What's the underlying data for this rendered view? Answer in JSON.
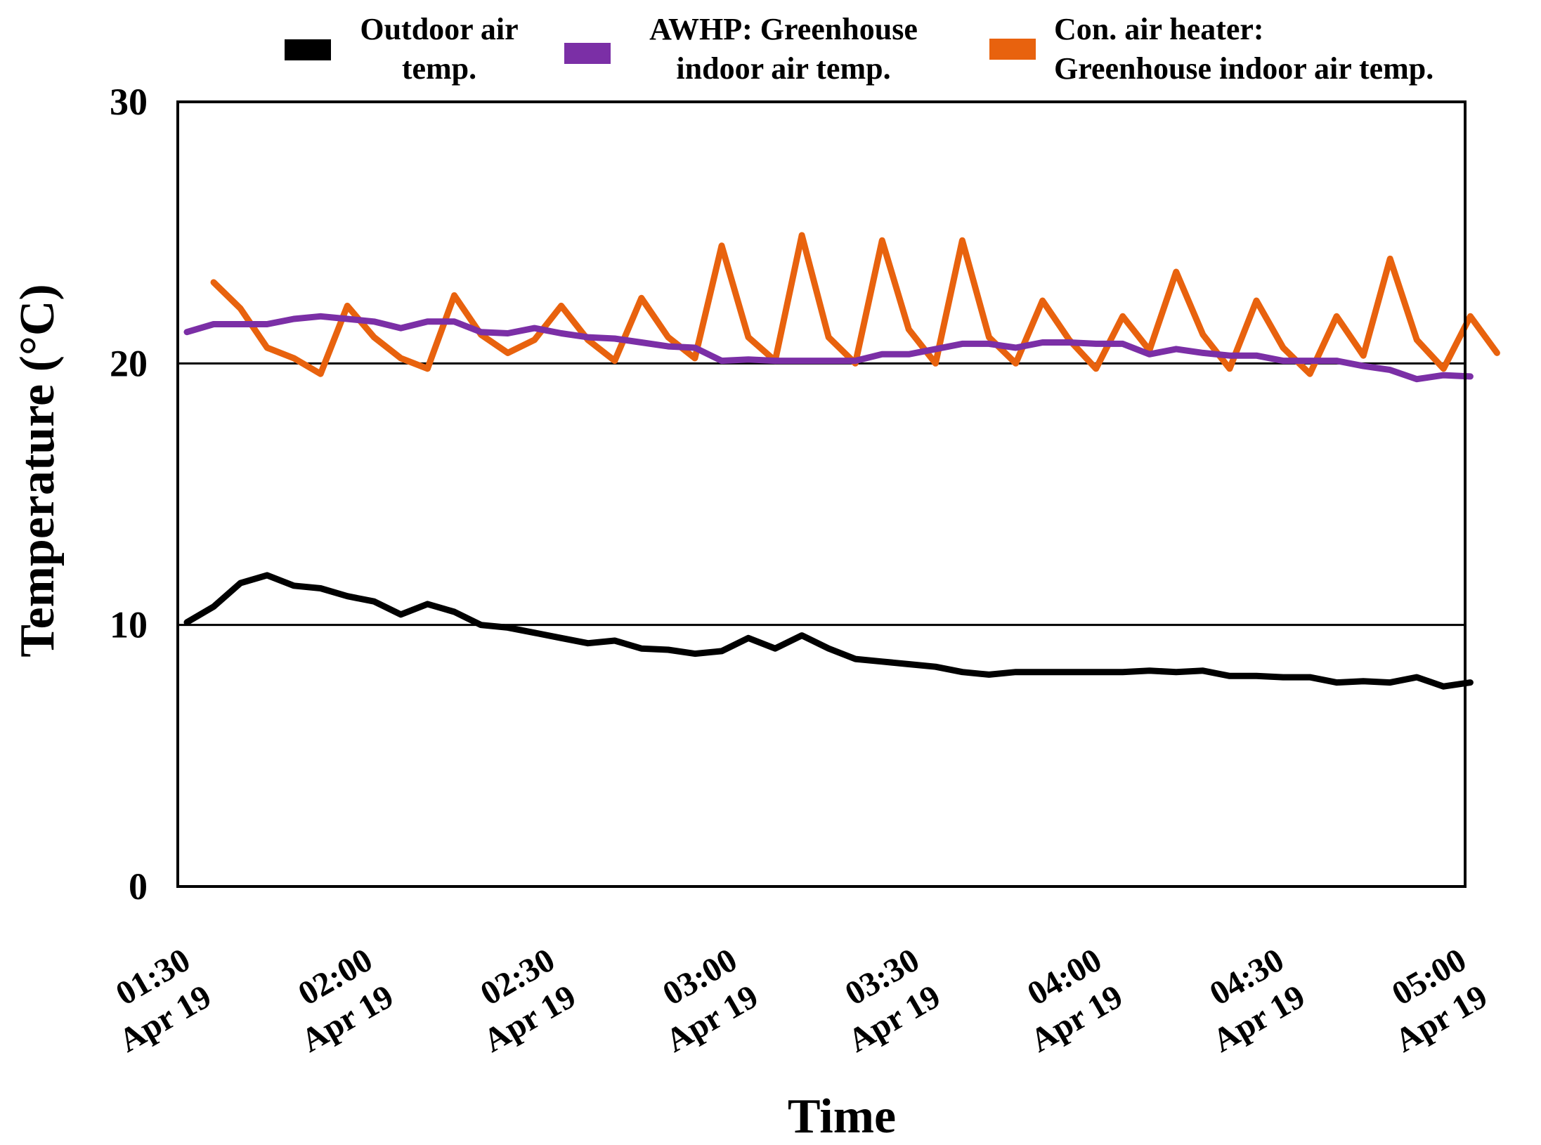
{
  "chart_data": {
    "type": "line",
    "title": "",
    "xlabel": "Time",
    "ylabel": "Temperature (°C)",
    "ylim": [
      0,
      30
    ],
    "yticks": [
      "0",
      "10",
      "20",
      "30"
    ],
    "xlim": [
      0,
      210
    ],
    "xticks": [
      {
        "minutes": 0,
        "line1": "01:30",
        "line2": "Apr 19"
      },
      {
        "minutes": 30,
        "line1": "02:00",
        "line2": "Apr 19"
      },
      {
        "minutes": 60,
        "line1": "02:30",
        "line2": "Apr 19"
      },
      {
        "minutes": 90,
        "line1": "03:00",
        "line2": "Apr 19"
      },
      {
        "minutes": 120,
        "line1": "03:30",
        "line2": "Apr 19"
      },
      {
        "minutes": 150,
        "line1": "04:00",
        "line2": "Apr 19"
      },
      {
        "minutes": 180,
        "line1": "04:30",
        "line2": "Apr 19"
      },
      {
        "minutes": 210,
        "line1": "05:00",
        "line2": "Apr 19"
      }
    ],
    "gridlines_y": [
      10,
      20
    ],
    "legend_position": "top",
    "series": [
      {
        "name_lines": [
          "Outdoor air",
          "temp."
        ],
        "color": "#000000",
        "x": [
          0,
          4.4,
          8.8,
          13.2,
          17.6,
          22,
          26.4,
          30.8,
          35.2,
          39.6,
          44,
          48.4,
          52.8,
          57.2,
          61.6,
          66,
          70.4,
          74.8,
          79.2,
          83.6,
          88,
          92.4,
          96.8,
          101.2,
          105.6,
          110,
          114.4,
          118.8,
          123.2,
          127.6,
          132,
          136.4,
          140.8,
          145.2,
          149.6,
          154,
          158.4,
          162.8,
          167.2,
          171.6,
          176,
          180.4,
          184.8,
          189.2,
          193.6,
          198,
          202.4,
          206.8,
          211.2
        ],
        "values": [
          10.1,
          10.7,
          11.6,
          11.9,
          11.5,
          11.4,
          11.1,
          10.9,
          10.4,
          10.8,
          10.5,
          10.0,
          9.9,
          9.7,
          9.5,
          9.3,
          9.4,
          9.1,
          9.05,
          8.9,
          9.0,
          9.5,
          9.1,
          9.6,
          9.1,
          8.7,
          8.6,
          8.5,
          8.4,
          8.2,
          8.1,
          8.2,
          8.2,
          8.2,
          8.2,
          8.2,
          8.25,
          8.2,
          8.25,
          8.05,
          8.05,
          8.0,
          8.0,
          7.8,
          7.85,
          7.8,
          8.0,
          7.65,
          7.8
        ]
      },
      {
        "name_lines": [
          "AWHP: Greenhouse",
          "indoor air temp."
        ],
        "color": "#7B2FA6",
        "x": [
          0,
          4.4,
          8.8,
          13.2,
          17.6,
          22,
          26.4,
          30.8,
          35.2,
          39.6,
          44,
          48.4,
          52.8,
          57.2,
          61.6,
          66,
          70.4,
          74.8,
          79.2,
          83.6,
          88,
          92.4,
          96.8,
          101.2,
          105.6,
          110,
          114.4,
          118.8,
          123.2,
          127.6,
          132,
          136.4,
          140.8,
          145.2,
          149.6,
          154,
          158.4,
          162.8,
          167.2,
          171.6,
          176,
          180.4,
          184.8,
          189.2,
          193.6,
          198,
          202.4,
          206.8,
          211.2
        ],
        "values": [
          21.2,
          21.5,
          21.5,
          21.5,
          21.7,
          21.8,
          21.7,
          21.6,
          21.35,
          21.6,
          21.6,
          21.2,
          21.15,
          21.35,
          21.15,
          21.0,
          20.95,
          20.8,
          20.65,
          20.6,
          20.1,
          20.15,
          20.1,
          20.1,
          20.1,
          20.1,
          20.35,
          20.35,
          20.55,
          20.75,
          20.75,
          20.6,
          20.8,
          20.8,
          20.75,
          20.75,
          20.35,
          20.55,
          20.4,
          20.3,
          20.3,
          20.1,
          20.1,
          20.1,
          19.9,
          19.75,
          19.4,
          19.55,
          19.5
        ]
      },
      {
        "name_lines": [
          "Con. air heater:",
          "Greenhouse indoor air temp."
        ],
        "color": "#E8620E",
        "x": [
          4.4,
          8.8,
          13.2,
          17.6,
          22,
          26.4,
          30.8,
          35.2,
          39.6,
          44,
          48.4,
          52.8,
          57.2,
          61.6,
          66,
          70.4,
          74.8,
          79.2,
          83.6,
          88,
          92.4,
          96.8,
          101.2,
          105.6,
          110,
          114.4,
          118.8,
          123.2,
          127.6,
          132,
          136.4,
          140.8,
          145.2,
          149.6,
          154,
          158.4,
          162.8,
          167.2,
          171.6,
          176,
          180.4,
          184.8,
          189.2,
          193.6,
          198,
          202.4,
          206.8,
          211.2,
          215.6
        ],
        "values": [
          23.1,
          22.1,
          20.6,
          20.2,
          19.6,
          22.2,
          21.0,
          20.2,
          19.8,
          22.6,
          21.1,
          20.4,
          20.9,
          22.2,
          20.9,
          20.1,
          22.5,
          21.0,
          20.2,
          24.5,
          21.0,
          20.1,
          24.9,
          21.0,
          20.0,
          24.7,
          21.3,
          20.0,
          24.7,
          21.0,
          20.0,
          22.4,
          20.9,
          19.8,
          21.8,
          20.5,
          23.5,
          21.1,
          19.8,
          22.4,
          20.6,
          19.6,
          21.8,
          20.3,
          24.0,
          20.9,
          19.8,
          21.8,
          20.4
        ]
      }
    ]
  }
}
